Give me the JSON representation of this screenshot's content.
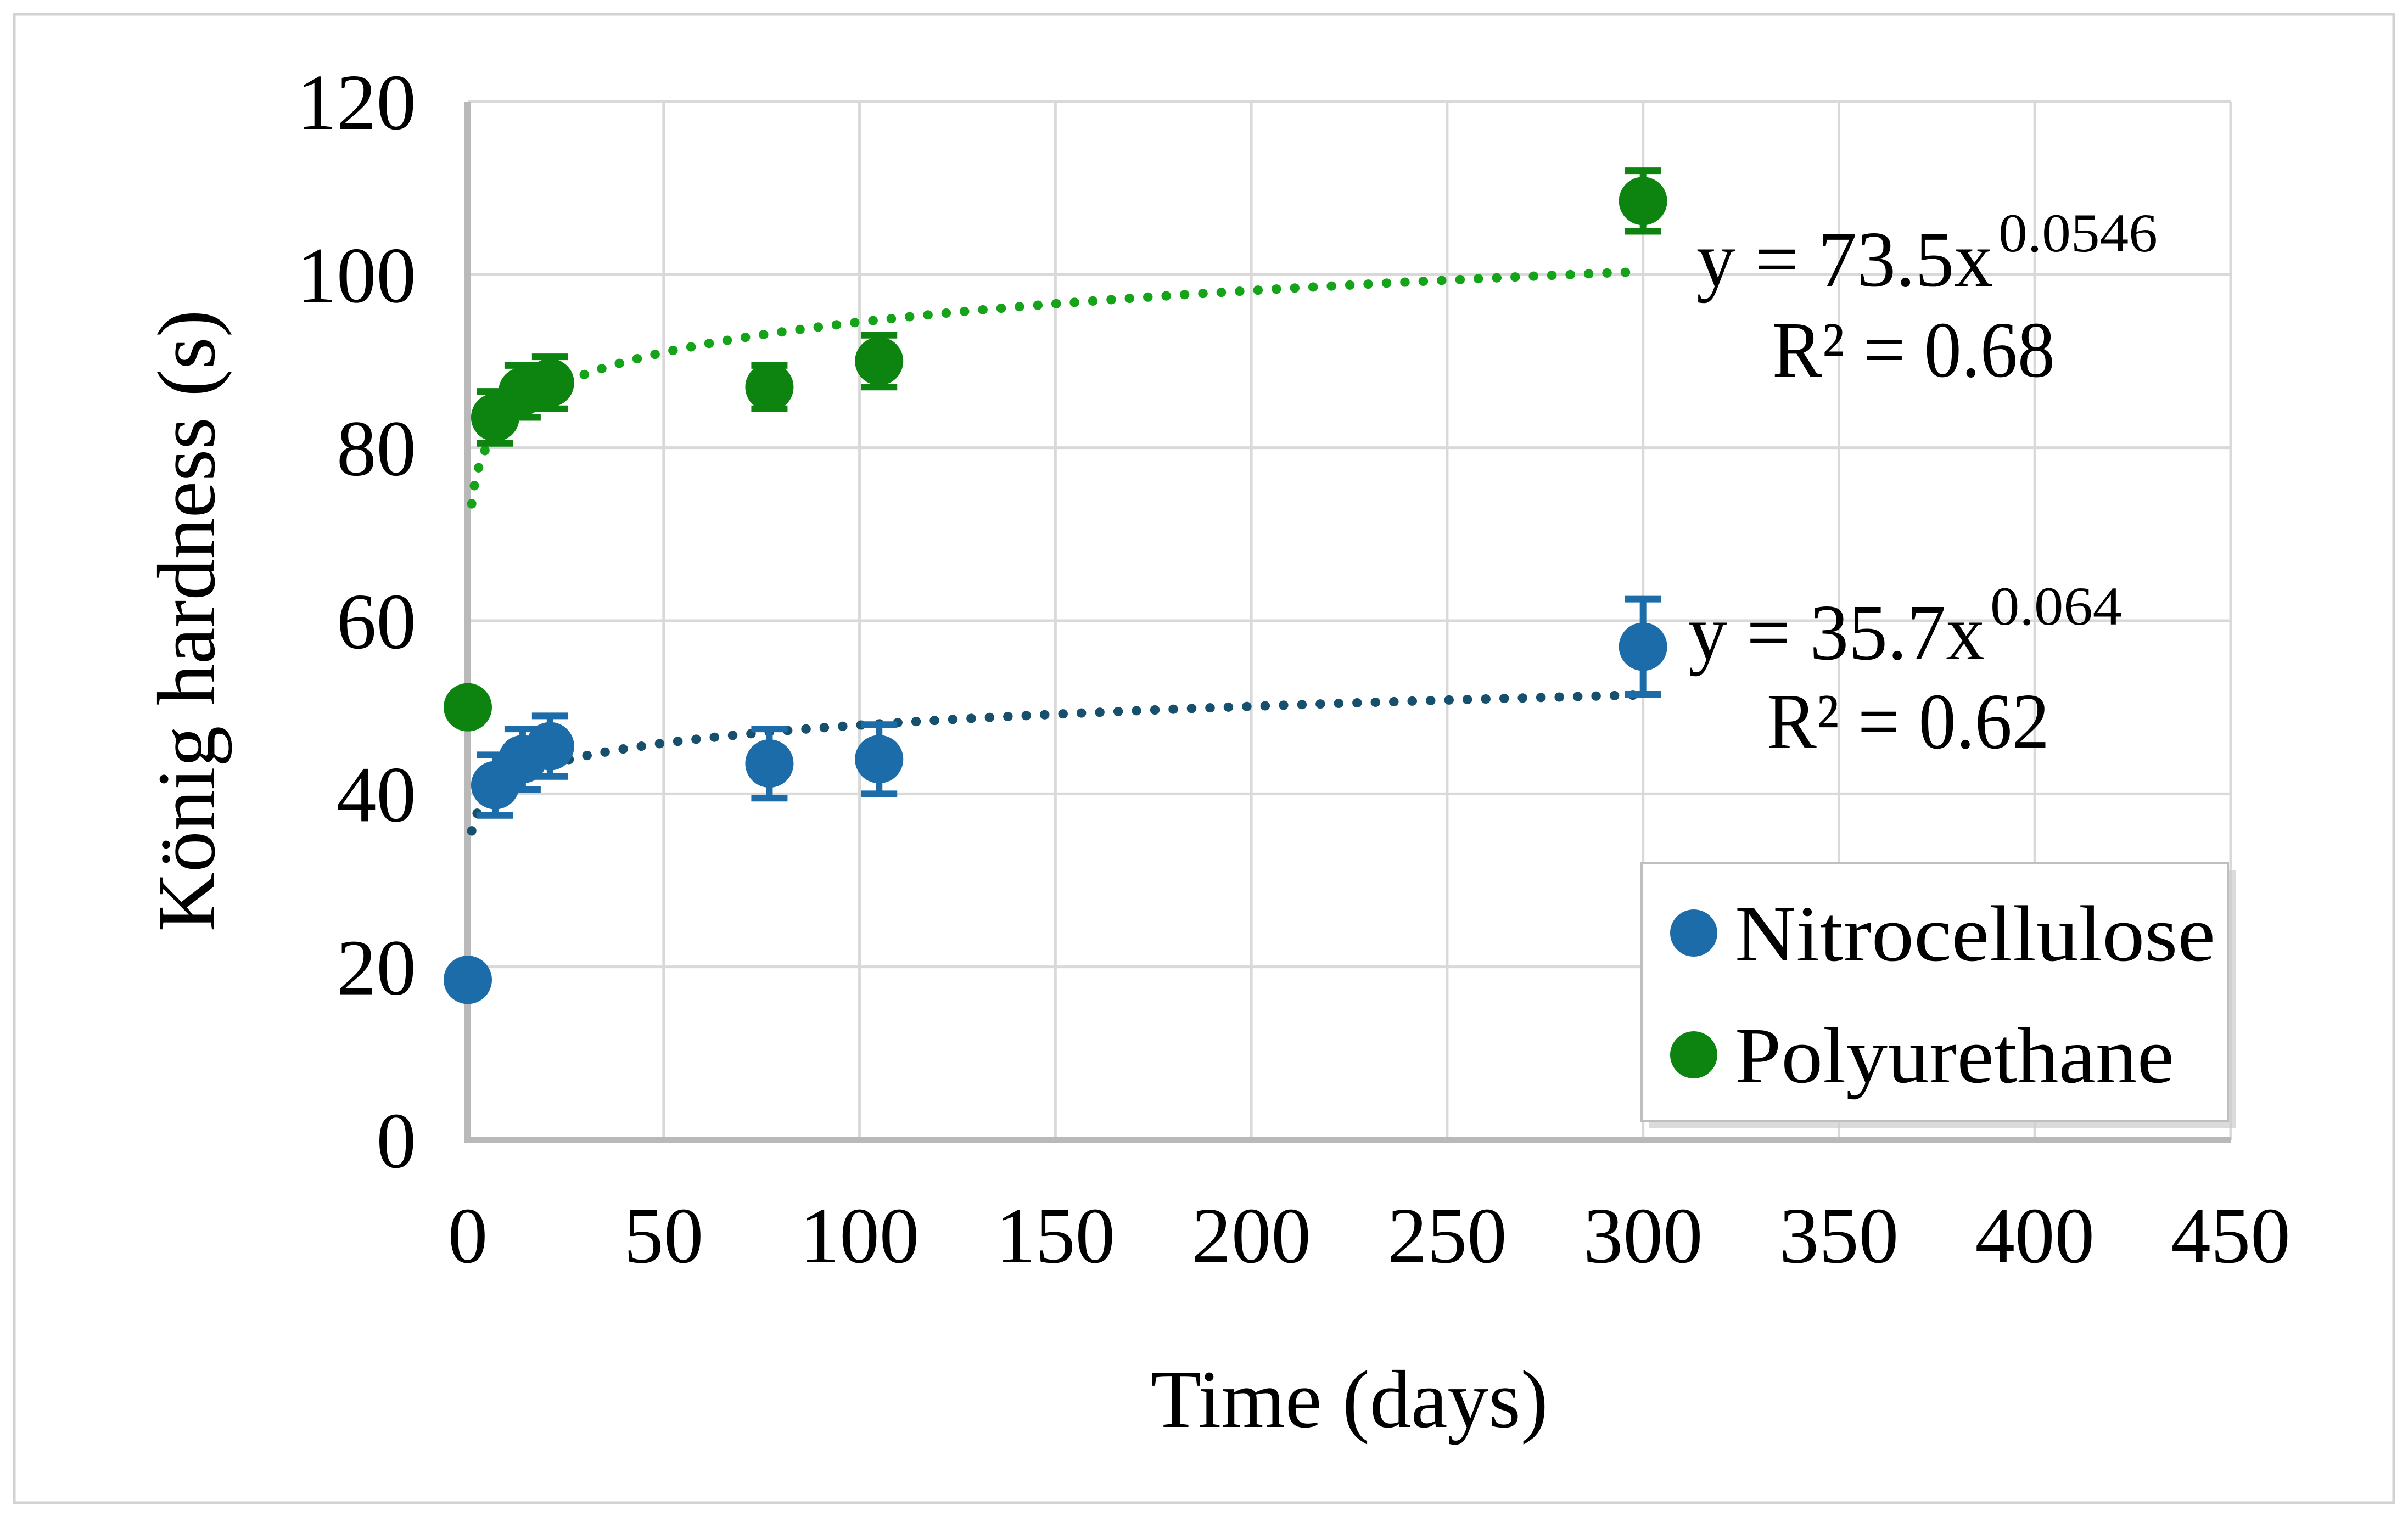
{
  "figure": {
    "type": "scientific-scatter-plot",
    "border_color": "#d2d2d2",
    "background": "#ffffff"
  },
  "chart_data": {
    "type": "scatter",
    "title": "",
    "xlabel": "Time (days)",
    "ylabel": "König hardness (s)",
    "xlim": [
      0,
      450
    ],
    "ylim": [
      0,
      120
    ],
    "xticks": [
      0,
      50,
      100,
      150,
      200,
      250,
      300,
      350,
      400,
      450
    ],
    "yticks": [
      0,
      20,
      40,
      60,
      80,
      100,
      120
    ],
    "grid": true,
    "gridline_color": "#d9d9d9",
    "axis_color": "#b9b9b9",
    "legend_position": "bottom-right",
    "series": [
      {
        "name": "Nitrocellulose",
        "color": "#1b6ca8",
        "trend_color": "#17506d",
        "points": [
          {
            "x": 0,
            "y": 18.5,
            "err": 0
          },
          {
            "x": 7,
            "y": 41,
            "err": 3.5
          },
          {
            "x": 14,
            "y": 44,
            "err": 3.5
          },
          {
            "x": 21,
            "y": 45.5,
            "err": 3.5
          },
          {
            "x": 77,
            "y": 43.5,
            "err": 4
          },
          {
            "x": 105,
            "y": 44,
            "err": 4
          },
          {
            "x": 300,
            "y": 57,
            "err": 5.5
          }
        ],
        "trendline": {
          "type": "power",
          "a": 35.7,
          "b": 0.064,
          "x_start": 1,
          "x_end": 300
        },
        "equation": "y = 35.7x",
        "equation_exp": "0.064",
        "r_squared": "R² = 0.62"
      },
      {
        "name": "Polyurethane",
        "color": "#0e8410",
        "trend_color": "#15a319",
        "points": [
          {
            "x": 0,
            "y": 50,
            "err": 0
          },
          {
            "x": 7,
            "y": 83.5,
            "err": 3
          },
          {
            "x": 14,
            "y": 86.5,
            "err": 3
          },
          {
            "x": 21,
            "y": 87.5,
            "err": 3
          },
          {
            "x": 77,
            "y": 87,
            "err": 2.5
          },
          {
            "x": 105,
            "y": 90,
            "err": 3
          },
          {
            "x": 300,
            "y": 108.5,
            "err": 3.5
          }
        ],
        "trendline": {
          "type": "power",
          "a": 73.5,
          "b": 0.0546,
          "x_start": 1,
          "x_end": 300
        },
        "equation": "y = 73.5x",
        "equation_exp": "0.0546",
        "r_squared": "R² = 0.68"
      }
    ],
    "legend": {
      "entries": [
        "Nitrocellulose",
        "Polyurethane"
      ]
    }
  }
}
